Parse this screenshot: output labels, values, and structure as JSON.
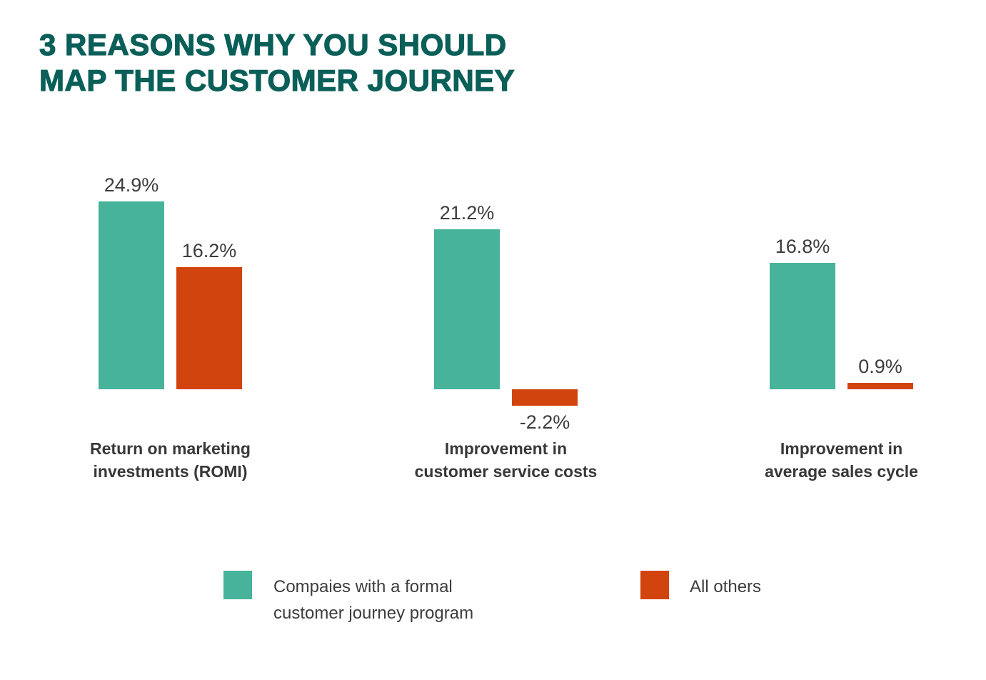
{
  "title_lines": [
    "3 REASONS WHY YOU SHOULD",
    "MAP THE CUSTOMER JOURNEY"
  ],
  "colors": {
    "title": "#0a5f58",
    "series_formal_program": "#46b39a",
    "series_all_others": "#d2440d",
    "label_text": "#3d3d3d"
  },
  "chart_data": {
    "type": "bar",
    "title": "3 REASONS WHY YOU SHOULD MAP THE CUSTOMER JOURNEY",
    "unit": "%",
    "grid": false,
    "axis_lines": false,
    "legend_position": "bottom",
    "baseline_value": 0,
    "ylim": [
      -2.2,
      24.9
    ],
    "categories": [
      "Return on marketing investments (ROMI)",
      "Improvement in customer service costs",
      "Improvement in average sales cycle"
    ],
    "category_label_lines": [
      [
        "Return on marketing",
        "investments (ROMI)"
      ],
      [
        "Improvement in",
        "customer service costs"
      ],
      [
        "Improvement in",
        "average sales cycle"
      ]
    ],
    "series": [
      {
        "name": "Compaies with a formal customer journey program",
        "color": "#46b39a",
        "values": [
          24.9,
          21.2,
          16.8
        ],
        "labels": [
          "24.9%",
          "21.2%",
          "16.8%"
        ]
      },
      {
        "name": "All others",
        "color": "#d2440d",
        "values": [
          16.2,
          -2.2,
          0.9
        ],
        "labels": [
          "16.2%",
          "-2.2%",
          "0.9%"
        ]
      }
    ]
  },
  "legend": {
    "items": [
      {
        "lines": [
          "Compaies with a formal",
          "customer journey program"
        ],
        "color": "#46b39a"
      },
      {
        "lines": [
          "All others"
        ],
        "color": "#d2440d"
      }
    ]
  }
}
